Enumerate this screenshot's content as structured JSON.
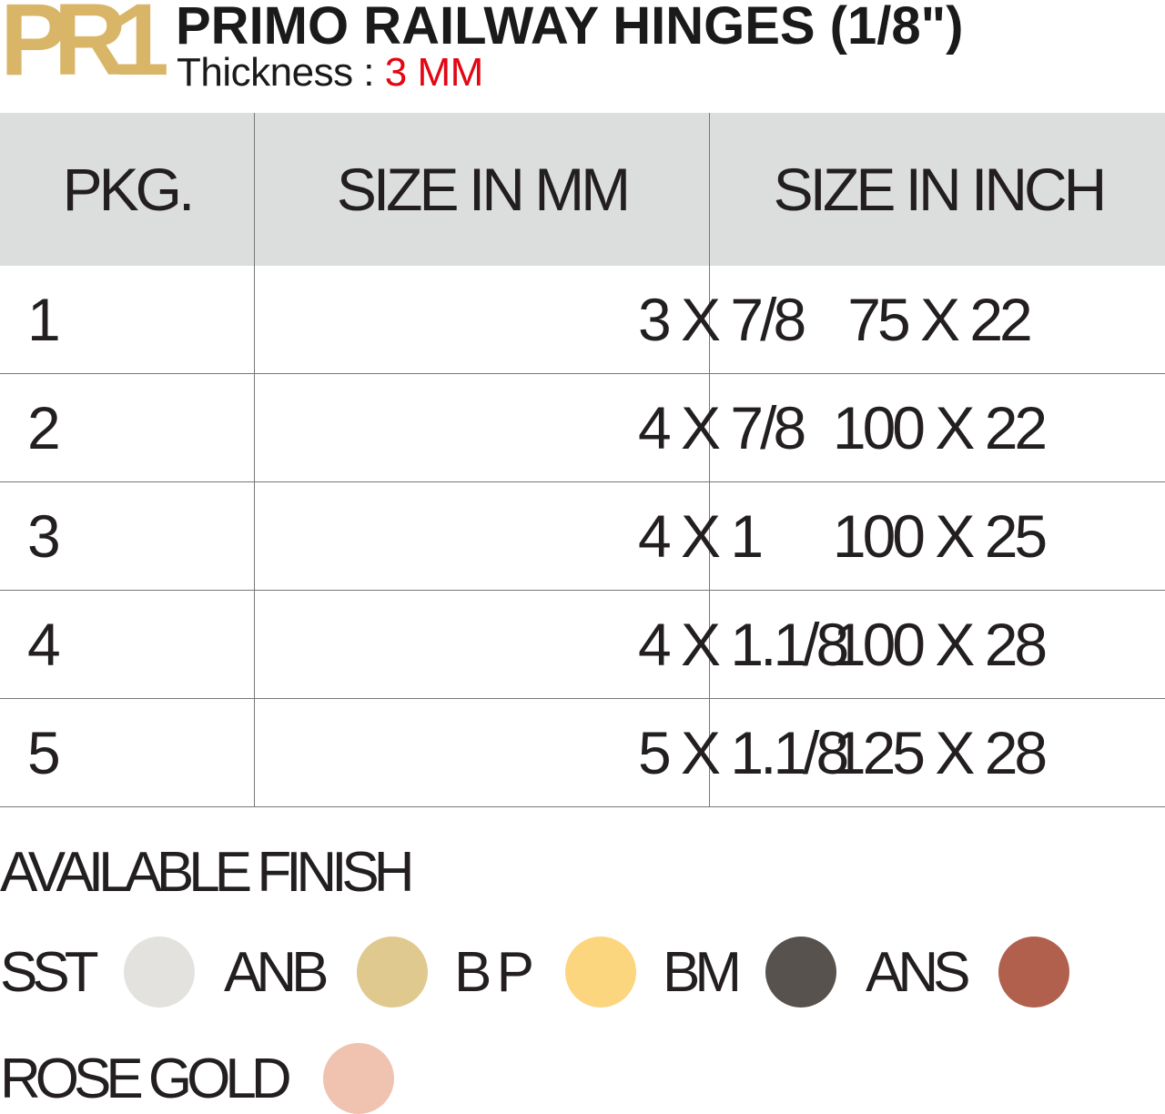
{
  "header": {
    "code": "PR1",
    "title": "PRIMO RAILWAY HINGES (1/8\")",
    "thickness_label": "Thickness : ",
    "thickness_value": "3 MM"
  },
  "table": {
    "columns": [
      "PKG.",
      "SIZE IN MM",
      "SIZE IN INCH"
    ],
    "rows": [
      [
        "1",
        "3 X 7/8",
        "75 X 22"
      ],
      [
        "2",
        "4 X 7/8",
        "100 X 22"
      ],
      [
        "3",
        "4 X 1",
        "100 X 25"
      ],
      [
        "4",
        "4 X 1.1/8",
        "100 X 28"
      ],
      [
        "5",
        "5 X 1.1/8",
        "125 X 28"
      ]
    ]
  },
  "finishes": {
    "title": "AVAILABLE FINISH",
    "items": [
      {
        "label": "SST",
        "color": "#e4e2df"
      },
      {
        "label": "ANB",
        "color": "#dfc98f"
      },
      {
        "label": "B P",
        "color": "#fcd57f"
      },
      {
        "label": "BM",
        "color": "#58524e"
      },
      {
        "label": "ANS",
        "color": "#b0604d"
      },
      {
        "label": "ROSE GOLD",
        "color": "#f0c2b0"
      }
    ]
  },
  "colors": {
    "brand_gold": "#d9b568",
    "accent_red": "#e30613",
    "header_bg": "#dcdddd"
  }
}
